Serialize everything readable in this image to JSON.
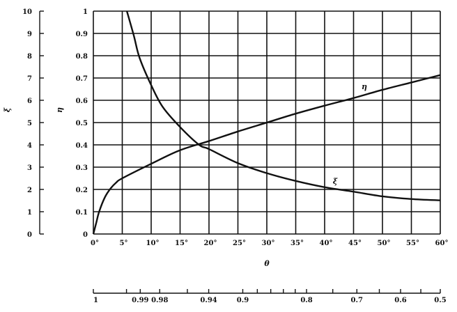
{
  "chart_data": {
    "type": "line",
    "xlabel": "θ",
    "x_unit": "°",
    "xlim": [
      0,
      60
    ],
    "x_ticks": [
      0,
      5,
      10,
      15,
      20,
      25,
      30,
      35,
      40,
      45,
      50,
      55,
      60
    ],
    "grid": true,
    "axes": [
      {
        "name": "ξ",
        "ylim": [
          0,
          10
        ],
        "ticks": [
          0,
          1,
          2,
          3,
          4,
          5,
          6,
          7,
          8,
          9,
          10
        ],
        "tick_labels": [
          "0",
          "1",
          "2",
          "3",
          "4",
          "5",
          "6",
          "7",
          "8",
          "9",
          "10"
        ]
      },
      {
        "name": "η",
        "ylim": [
          0,
          1
        ],
        "ticks": [
          0,
          0.1,
          0.2,
          0.3,
          0.4,
          0.5,
          0.6,
          0.7,
          0.8,
          0.9,
          1
        ],
        "tick_labels": [
          "0",
          "0.1",
          "0.2",
          "0.3",
          "0.4",
          "0.5",
          "0.6",
          "0.7",
          "0.8",
          "0.9",
          "1"
        ]
      }
    ],
    "series": [
      {
        "name": "η",
        "axis": "η",
        "x": [
          0,
          0.5,
          1,
          2,
          3,
          4,
          5,
          10,
          15,
          20,
          25,
          30,
          35,
          40,
          45,
          50,
          55,
          60
        ],
        "y": [
          0,
          0.05,
          0.1,
          0.165,
          0.205,
          0.232,
          0.25,
          0.315,
          0.376,
          0.417,
          0.46,
          0.5,
          0.54,
          0.576,
          0.61,
          0.647,
          0.68,
          0.713
        ]
      },
      {
        "name": "ξ",
        "axis": "ξ",
        "x": [
          5.8,
          7,
          8,
          10,
          12,
          15,
          18.3,
          20,
          25,
          30,
          35,
          40,
          45,
          50,
          55,
          60
        ],
        "y": [
          10,
          8.9,
          7.9,
          6.68,
          5.7,
          4.8,
          4.0,
          3.81,
          3.18,
          2.73,
          2.38,
          2.1,
          1.9,
          1.69,
          1.57,
          1.51
        ]
      }
    ],
    "secondary_x_scale": {
      "relation": "cos θ",
      "ticks": [
        1,
        0.995,
        0.99,
        0.98,
        0.96,
        0.94,
        0.9,
        0.88,
        0.86,
        0.84,
        0.82,
        0.8,
        0.75,
        0.7,
        0.65,
        0.6,
        0.55,
        0.5
      ],
      "labels": [
        {
          "value": 1,
          "text": "1"
        },
        {
          "value": 0.99,
          "text": "0.99"
        },
        {
          "value": 0.98,
          "text": "0.98"
        },
        {
          "value": 0.94,
          "text": "0.94"
        },
        {
          "value": 0.9,
          "text": "0.9"
        },
        {
          "value": 0.8,
          "text": "0.8"
        },
        {
          "value": 0.7,
          "text": "0.7"
        },
        {
          "value": 0.6,
          "text": "0.6"
        },
        {
          "value": 0.5,
          "text": "0.5"
        }
      ]
    }
  }
}
